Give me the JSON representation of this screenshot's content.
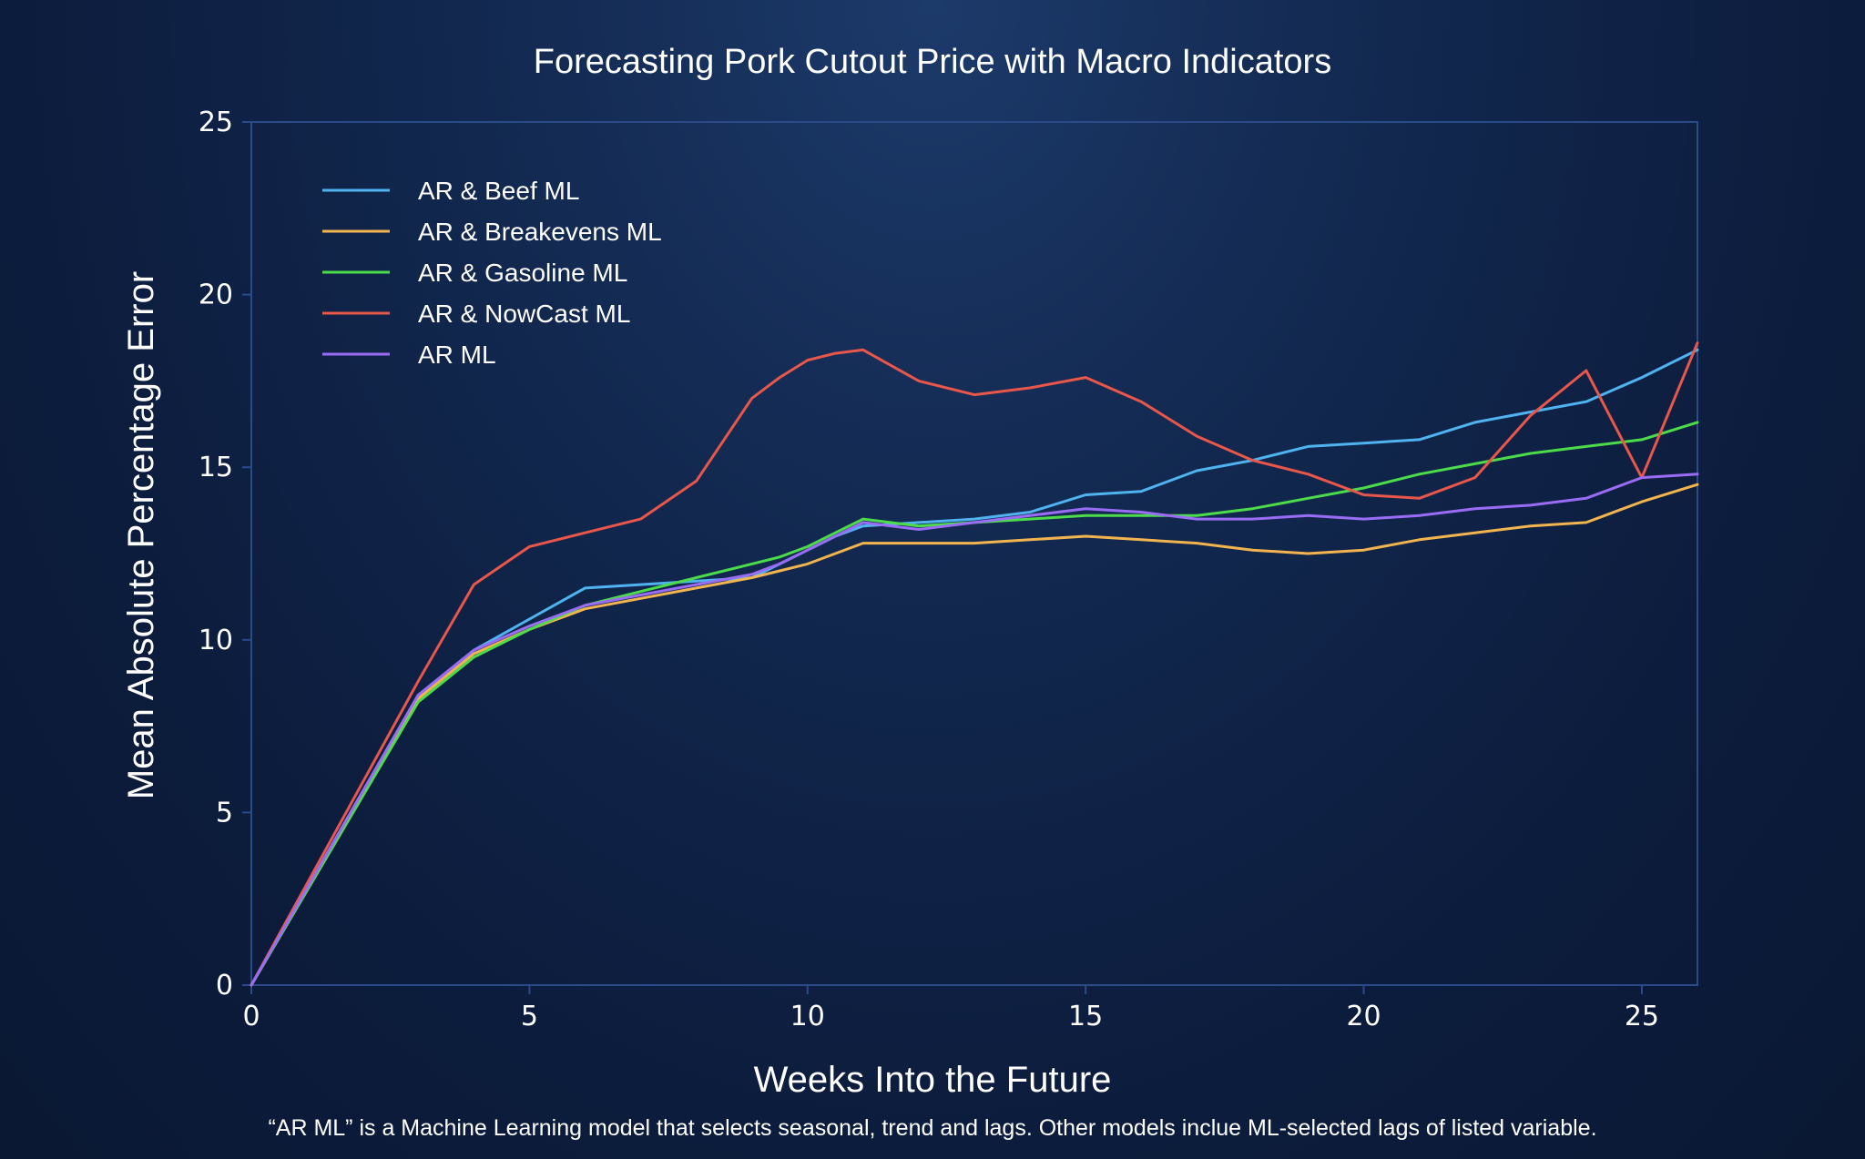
{
  "chart_data": {
    "type": "line",
    "title": "Forecasting Pork Cutout Price with Macro Indicators",
    "xlabel": "Weeks Into the Future",
    "ylabel": "Mean Absolute Percentage Error",
    "footnote": "“AR ML” is a Machine Learning model that selects seasonal, trend and lags. Other models inclue ML-selected lags of listed variable.",
    "xlim": [
      0,
      26
    ],
    "ylim": [
      0,
      25
    ],
    "xticks": [
      0,
      5,
      10,
      15,
      20,
      25
    ],
    "yticks": [
      0,
      5,
      10,
      15,
      20,
      25
    ],
    "grid": false,
    "legend_position": "top-left",
    "x": [
      0,
      3,
      4,
      5,
      6,
      7,
      8,
      9,
      9.5,
      10,
      10.5,
      11,
      12,
      13,
      14,
      15,
      16,
      17,
      18,
      19,
      20,
      21,
      22,
      23,
      24,
      25,
      26
    ],
    "series": [
      {
        "name": "AR & Beef ML",
        "color": "#4fb3f0",
        "values": [
          0,
          8.4,
          9.7,
          10.6,
          11.5,
          11.6,
          11.7,
          11.8,
          12.2,
          12.6,
          13.0,
          13.3,
          13.4,
          13.5,
          13.7,
          14.2,
          14.3,
          14.9,
          15.2,
          15.6,
          15.7,
          15.8,
          16.3,
          16.6,
          16.9,
          17.6,
          18.4
        ]
      },
      {
        "name": "AR & Breakevens ML",
        "color": "#f2b44f",
        "values": [
          0,
          8.3,
          9.6,
          10.3,
          10.9,
          11.2,
          11.5,
          11.8,
          12.0,
          12.2,
          12.5,
          12.8,
          12.8,
          12.8,
          12.9,
          13.0,
          12.9,
          12.8,
          12.6,
          12.5,
          12.6,
          12.9,
          13.1,
          13.3,
          13.4,
          14.0,
          14.5
        ]
      },
      {
        "name": "AR & Gasoline ML",
        "color": "#4cdc4a",
        "values": [
          0,
          8.2,
          9.5,
          10.3,
          11.0,
          11.4,
          11.8,
          12.2,
          12.4,
          12.7,
          13.1,
          13.5,
          13.3,
          13.4,
          13.5,
          13.6,
          13.6,
          13.6,
          13.8,
          14.1,
          14.4,
          14.8,
          15.1,
          15.4,
          15.6,
          15.8,
          16.3
        ]
      },
      {
        "name": "AR & NowCast ML",
        "color": "#e8574a",
        "values": [
          0,
          8.8,
          11.6,
          12.7,
          13.1,
          13.5,
          14.6,
          17.0,
          17.6,
          18.1,
          18.3,
          18.4,
          17.5,
          17.1,
          17.3,
          17.6,
          16.9,
          15.9,
          15.2,
          14.8,
          14.2,
          14.1,
          14.7,
          16.5,
          17.8,
          14.7,
          18.6
        ]
      },
      {
        "name": "AR ML",
        "color": "#9a6cf5",
        "values": [
          0,
          8.4,
          9.7,
          10.4,
          11.0,
          11.3,
          11.6,
          11.9,
          12.2,
          12.6,
          13.0,
          13.4,
          13.2,
          13.4,
          13.6,
          13.8,
          13.7,
          13.5,
          13.5,
          13.6,
          13.5,
          13.6,
          13.8,
          13.9,
          14.1,
          14.7,
          14.8
        ]
      }
    ]
  }
}
